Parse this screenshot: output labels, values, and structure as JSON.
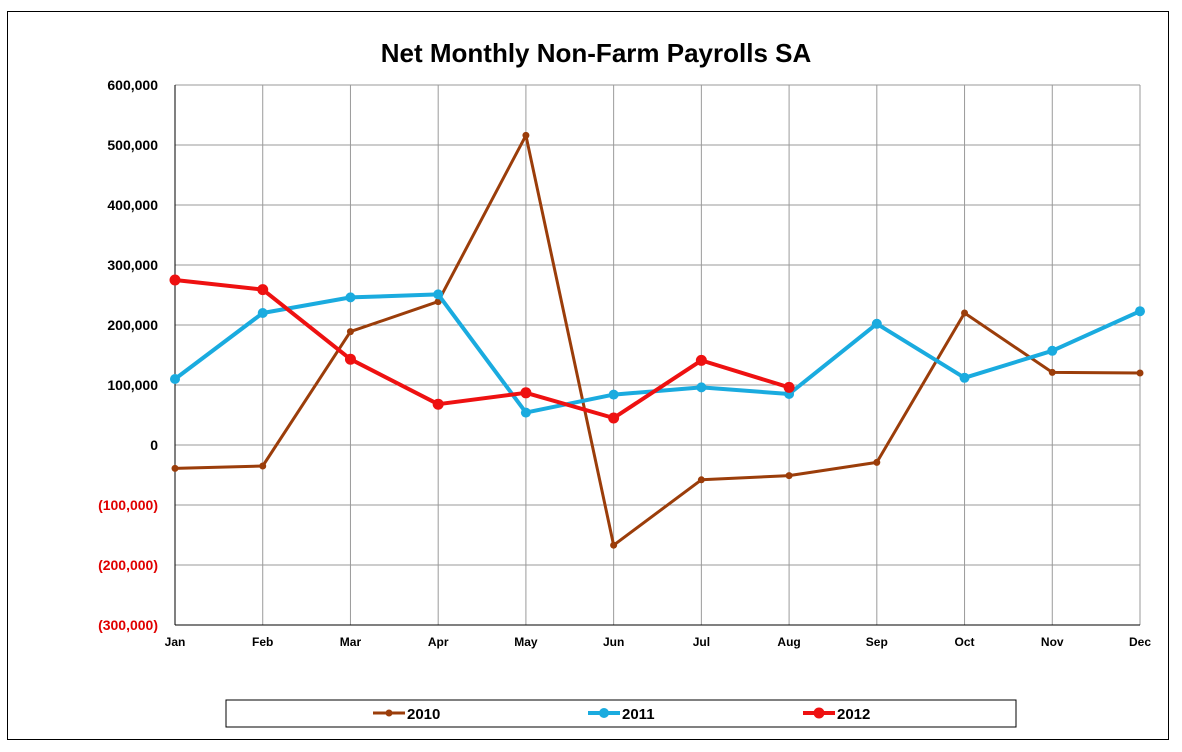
{
  "chart_data": {
    "type": "line",
    "title": "Net Monthly Non-Farm Payrolls SA",
    "xlabel": "",
    "ylabel": "",
    "categories": [
      "Jan",
      "Feb",
      "Mar",
      "Apr",
      "May",
      "Jun",
      "Jul",
      "Aug",
      "Sep",
      "Oct",
      "Nov",
      "Dec"
    ],
    "ylim": [
      -300000,
      600000
    ],
    "yticks": [
      600000,
      500000,
      400000,
      300000,
      200000,
      100000,
      0,
      -100000,
      -200000,
      -300000
    ],
    "ytick_labels": [
      "600,000",
      "500,000",
      "400,000",
      "300,000",
      "200,000",
      "100,000",
      "0",
      "(100,000)",
      "(200,000)",
      "(300,000)"
    ],
    "negative_tick_color": "#e00000",
    "grid": true,
    "legend_position": "bottom",
    "series": [
      {
        "name": "2010",
        "color": "#9b3d0a",
        "values": [
          -39000,
          -35000,
          189000,
          239000,
          516000,
          -167000,
          -58000,
          -51000,
          -29000,
          220000,
          121000,
          120000
        ]
      },
      {
        "name": "2011",
        "color": "#1aabdf",
        "values": [
          110000,
          220000,
          246000,
          251000,
          54000,
          84000,
          96000,
          85000,
          202000,
          112000,
          157000,
          223000
        ]
      },
      {
        "name": "2012",
        "color": "#ee1111",
        "values": [
          275000,
          259000,
          143000,
          68000,
          87000,
          45000,
          141000,
          96000,
          null,
          null,
          null,
          null
        ]
      }
    ]
  }
}
